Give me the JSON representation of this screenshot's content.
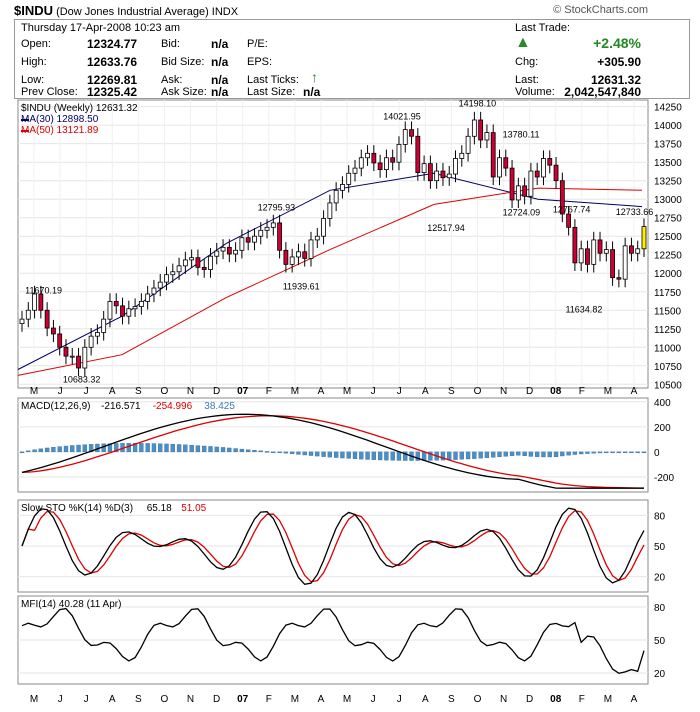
{
  "header": {
    "symbol": "$INDU",
    "name": "(Dow Jones Industrial Average)",
    "exchange": "INDX",
    "brand": "© StockCharts.com",
    "date": "Thursday 17-Apr-2008 10:23 am"
  },
  "quote": {
    "open_label": "Open:",
    "open": "12324.77",
    "high_label": "High:",
    "high": "12633.76",
    "low_label": "Low:",
    "low": "12269.81",
    "prev_label": "Prev Close:",
    "prev": "12325.42",
    "bid_label": "Bid:",
    "bid": "n/a",
    "bidsize_label": "Bid Size:",
    "bidsize": "n/a",
    "ask_label": "Ask:",
    "ask": "n/a",
    "asksize_label": "Ask Size:",
    "asksize": "n/a",
    "pe_label": "P/E:",
    "eps_label": "EPS:",
    "ticks_label": "Last Ticks:",
    "lastsize_label": "Last Size:",
    "lastsize": "n/a",
    "lasttrade_label": "Last Trade:",
    "pct": "+2.48%",
    "chg_label": "Chg:",
    "chg": "+305.90",
    "last_label": "Last:",
    "last": "12631.32",
    "vol_label": "Volume:",
    "vol": "2,042,547,840"
  },
  "colors": {
    "up": "#ffffff",
    "down": "#cc0033",
    "ma30": "#000066",
    "ma50": "#dd0000",
    "macd_hist": "#4a90c8",
    "mfi_fill": "#7fa07f",
    "pct_green": "#228822",
    "highlight": "#ffee00"
  },
  "chart_data": [
    {
      "type": "candlestick",
      "legend": [
        "$INDU (Weekly) 12631.32",
        "MA(30) 12898.50",
        "MA(50) 13121.89"
      ],
      "y_ticks": [
        "14250",
        "14000",
        "13750",
        "13500",
        "13250",
        "13000",
        "12750",
        "12500",
        "12250",
        "12000",
        "11750",
        "11500",
        "11250",
        "11000",
        "10750",
        "10500"
      ],
      "ylim": [
        10450,
        14340
      ],
      "x_labels": [
        "M",
        "J",
        "J",
        "A",
        "S",
        "O",
        "N",
        "D",
        "07",
        "F",
        "M",
        "A",
        "M",
        "J",
        "J",
        "A",
        "S",
        "O",
        "N",
        "D",
        "08",
        "F",
        "M",
        "A"
      ],
      "annotations": [
        {
          "text": "11670.19",
          "week": 4,
          "value": 11670.19
        },
        {
          "text": "10683.32",
          "week": 10,
          "value": 10683.32
        },
        {
          "text": "12795.93",
          "week": 41,
          "value": 12795.93
        },
        {
          "text": "11939.61",
          "week": 45,
          "value": 11939.61
        },
        {
          "text": "14021.95",
          "week": 61,
          "value": 14021.95
        },
        {
          "text": "12517.94",
          "week": 68,
          "value": 12517.94
        },
        {
          "text": "14198.10",
          "week": 73,
          "value": 14198.1
        },
        {
          "text": "13780.11",
          "week": 80,
          "value": 13780.11
        },
        {
          "text": "12724.09",
          "week": 80,
          "value": 12724.09
        },
        {
          "text": "12767.74",
          "week": 88,
          "value": 12767.74
        },
        {
          "text": "11634.82",
          "week": 90,
          "value": 11634.82
        },
        {
          "text": "12733.66",
          "week": 98,
          "value": 12733.66
        }
      ],
      "closes": [
        11380,
        11500,
        11720,
        11500,
        11260,
        11180,
        11000,
        10880,
        10880,
        10720,
        11000,
        11150,
        11200,
        11380,
        11620,
        11560,
        11420,
        11520,
        11550,
        11620,
        11720,
        11800,
        11880,
        11980,
        12020,
        12100,
        12180,
        12210,
        12080,
        12050,
        12230,
        12300,
        12350,
        12260,
        12310,
        12480,
        12420,
        12500,
        12580,
        12620,
        12680,
        12310,
        12120,
        12220,
        12290,
        12200,
        12450,
        12500,
        12740,
        12950,
        13120,
        13200,
        13350,
        13420,
        13560,
        13620,
        13490,
        13400,
        13560,
        13500,
        13740,
        13940,
        13850,
        13360,
        13480,
        13250,
        13380,
        13290,
        13340,
        13550,
        13620,
        13850,
        14070,
        13800,
        13900,
        13300,
        13560,
        13420,
        12990,
        13180,
        13040,
        13380,
        13300,
        13550,
        13460,
        13250,
        12800,
        12620,
        12140,
        12330,
        12120,
        12450,
        12270,
        12320,
        11940,
        11920,
        12370,
        12270,
        12330,
        12630
      ],
      "ma30_visible": [
        10700,
        11420,
        12400,
        13120,
        13350,
        13000,
        12900
      ],
      "ma50_visible": [
        10620,
        10900,
        11670,
        12320,
        12930,
        13150,
        13120
      ]
    },
    {
      "type": "line",
      "legend": [
        "MACD(12,26,9)",
        "-216.571",
        "-254.996",
        "38.425"
      ],
      "y_ticks": [
        "400",
        "200",
        "0",
        "-200"
      ],
      "ylim": [
        -320,
        430
      ]
    },
    {
      "type": "line",
      "legend": [
        "Slow STO %K(14) %D(3)",
        "65.18",
        "51.05"
      ],
      "y_ticks": [
        "80",
        "50",
        "20"
      ],
      "ylim": [
        5,
        95
      ]
    },
    {
      "type": "line",
      "legend": [
        "MFI(14) 40.28 (11 Apr)"
      ],
      "y_ticks": [
        "80",
        "50",
        "20"
      ],
      "ylim": [
        10,
        90
      ]
    }
  ]
}
